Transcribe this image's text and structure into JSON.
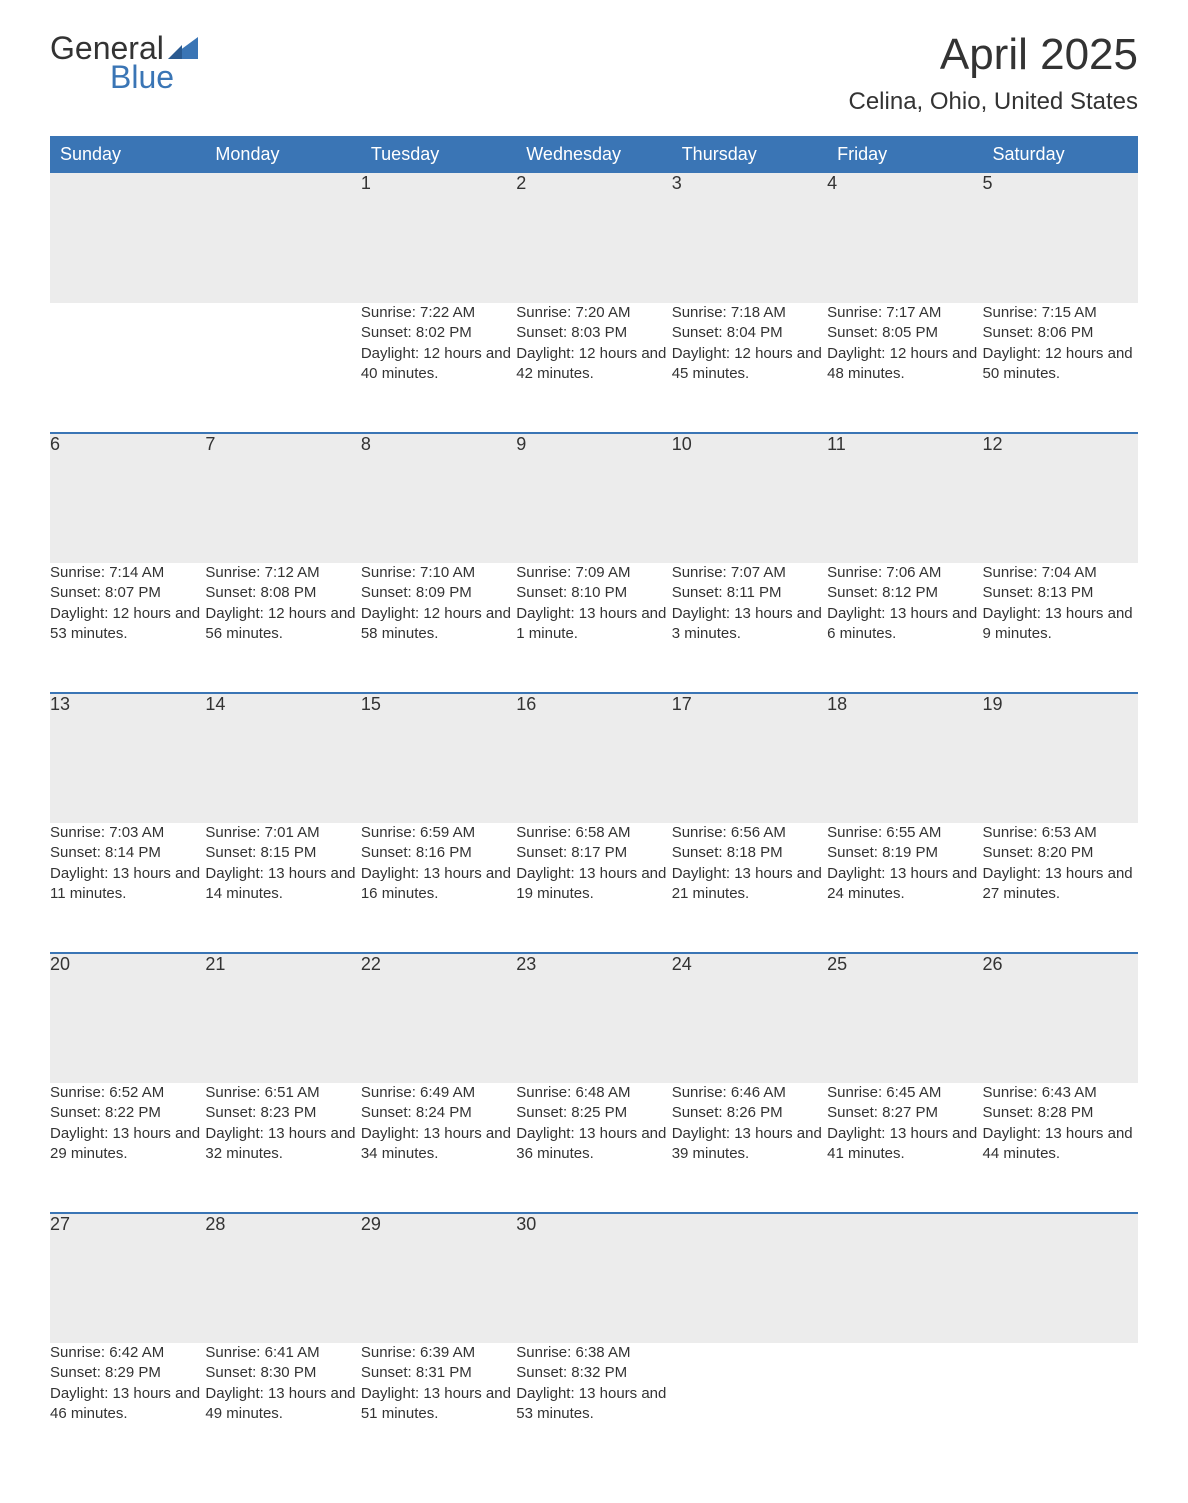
{
  "logo": {
    "word1": "General",
    "word2": "Blue"
  },
  "title": "April 2025",
  "location": "Celina, Ohio, United States",
  "colors": {
    "header_bg": "#3a75b5",
    "header_text": "#ffffff",
    "daynum_bg": "#ececec",
    "week_divider": "#3a75b5",
    "text": "#333333",
    "logo_accent": "#3a75b5"
  },
  "layout": {
    "type": "calendar-table",
    "columns": 7,
    "weeks": 5,
    "cell_fontsize": 15,
    "header_fontsize": 18,
    "title_fontsize": 44,
    "location_fontsize": 24
  },
  "weekdays": [
    "Sunday",
    "Monday",
    "Tuesday",
    "Wednesday",
    "Thursday",
    "Friday",
    "Saturday"
  ],
  "weeks": [
    [
      null,
      null,
      {
        "d": "1",
        "sr": "Sunrise: 7:22 AM",
        "ss": "Sunset: 8:02 PM",
        "dl": "Daylight: 12 hours and 40 minutes."
      },
      {
        "d": "2",
        "sr": "Sunrise: 7:20 AM",
        "ss": "Sunset: 8:03 PM",
        "dl": "Daylight: 12 hours and 42 minutes."
      },
      {
        "d": "3",
        "sr": "Sunrise: 7:18 AM",
        "ss": "Sunset: 8:04 PM",
        "dl": "Daylight: 12 hours and 45 minutes."
      },
      {
        "d": "4",
        "sr": "Sunrise: 7:17 AM",
        "ss": "Sunset: 8:05 PM",
        "dl": "Daylight: 12 hours and 48 minutes."
      },
      {
        "d": "5",
        "sr": "Sunrise: 7:15 AM",
        "ss": "Sunset: 8:06 PM",
        "dl": "Daylight: 12 hours and 50 minutes."
      }
    ],
    [
      {
        "d": "6",
        "sr": "Sunrise: 7:14 AM",
        "ss": "Sunset: 8:07 PM",
        "dl": "Daylight: 12 hours and 53 minutes."
      },
      {
        "d": "7",
        "sr": "Sunrise: 7:12 AM",
        "ss": "Sunset: 8:08 PM",
        "dl": "Daylight: 12 hours and 56 minutes."
      },
      {
        "d": "8",
        "sr": "Sunrise: 7:10 AM",
        "ss": "Sunset: 8:09 PM",
        "dl": "Daylight: 12 hours and 58 minutes."
      },
      {
        "d": "9",
        "sr": "Sunrise: 7:09 AM",
        "ss": "Sunset: 8:10 PM",
        "dl": "Daylight: 13 hours and 1 minute."
      },
      {
        "d": "10",
        "sr": "Sunrise: 7:07 AM",
        "ss": "Sunset: 8:11 PM",
        "dl": "Daylight: 13 hours and 3 minutes."
      },
      {
        "d": "11",
        "sr": "Sunrise: 7:06 AM",
        "ss": "Sunset: 8:12 PM",
        "dl": "Daylight: 13 hours and 6 minutes."
      },
      {
        "d": "12",
        "sr": "Sunrise: 7:04 AM",
        "ss": "Sunset: 8:13 PM",
        "dl": "Daylight: 13 hours and 9 minutes."
      }
    ],
    [
      {
        "d": "13",
        "sr": "Sunrise: 7:03 AM",
        "ss": "Sunset: 8:14 PM",
        "dl": "Daylight: 13 hours and 11 minutes."
      },
      {
        "d": "14",
        "sr": "Sunrise: 7:01 AM",
        "ss": "Sunset: 8:15 PM",
        "dl": "Daylight: 13 hours and 14 minutes."
      },
      {
        "d": "15",
        "sr": "Sunrise: 6:59 AM",
        "ss": "Sunset: 8:16 PM",
        "dl": "Daylight: 13 hours and 16 minutes."
      },
      {
        "d": "16",
        "sr": "Sunrise: 6:58 AM",
        "ss": "Sunset: 8:17 PM",
        "dl": "Daylight: 13 hours and 19 minutes."
      },
      {
        "d": "17",
        "sr": "Sunrise: 6:56 AM",
        "ss": "Sunset: 8:18 PM",
        "dl": "Daylight: 13 hours and 21 minutes."
      },
      {
        "d": "18",
        "sr": "Sunrise: 6:55 AM",
        "ss": "Sunset: 8:19 PM",
        "dl": "Daylight: 13 hours and 24 minutes."
      },
      {
        "d": "19",
        "sr": "Sunrise: 6:53 AM",
        "ss": "Sunset: 8:20 PM",
        "dl": "Daylight: 13 hours and 27 minutes."
      }
    ],
    [
      {
        "d": "20",
        "sr": "Sunrise: 6:52 AM",
        "ss": "Sunset: 8:22 PM",
        "dl": "Daylight: 13 hours and 29 minutes."
      },
      {
        "d": "21",
        "sr": "Sunrise: 6:51 AM",
        "ss": "Sunset: 8:23 PM",
        "dl": "Daylight: 13 hours and 32 minutes."
      },
      {
        "d": "22",
        "sr": "Sunrise: 6:49 AM",
        "ss": "Sunset: 8:24 PM",
        "dl": "Daylight: 13 hours and 34 minutes."
      },
      {
        "d": "23",
        "sr": "Sunrise: 6:48 AM",
        "ss": "Sunset: 8:25 PM",
        "dl": "Daylight: 13 hours and 36 minutes."
      },
      {
        "d": "24",
        "sr": "Sunrise: 6:46 AM",
        "ss": "Sunset: 8:26 PM",
        "dl": "Daylight: 13 hours and 39 minutes."
      },
      {
        "d": "25",
        "sr": "Sunrise: 6:45 AM",
        "ss": "Sunset: 8:27 PM",
        "dl": "Daylight: 13 hours and 41 minutes."
      },
      {
        "d": "26",
        "sr": "Sunrise: 6:43 AM",
        "ss": "Sunset: 8:28 PM",
        "dl": "Daylight: 13 hours and 44 minutes."
      }
    ],
    [
      {
        "d": "27",
        "sr": "Sunrise: 6:42 AM",
        "ss": "Sunset: 8:29 PM",
        "dl": "Daylight: 13 hours and 46 minutes."
      },
      {
        "d": "28",
        "sr": "Sunrise: 6:41 AM",
        "ss": "Sunset: 8:30 PM",
        "dl": "Daylight: 13 hours and 49 minutes."
      },
      {
        "d": "29",
        "sr": "Sunrise: 6:39 AM",
        "ss": "Sunset: 8:31 PM",
        "dl": "Daylight: 13 hours and 51 minutes."
      },
      {
        "d": "30",
        "sr": "Sunrise: 6:38 AM",
        "ss": "Sunset: 8:32 PM",
        "dl": "Daylight: 13 hours and 53 minutes."
      },
      null,
      null,
      null
    ]
  ]
}
